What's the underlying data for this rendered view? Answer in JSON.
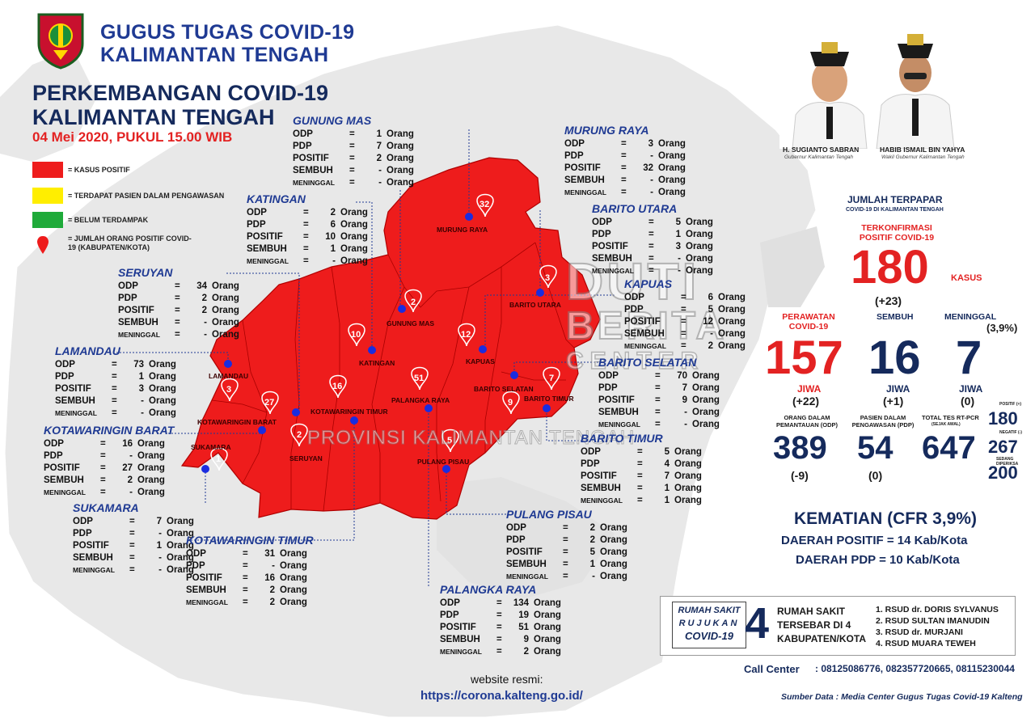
{
  "header": {
    "org_line1": "GUGUS TUGAS COVID-19",
    "org_line2": "KALIMANTAN TENGAH",
    "title_line1": "PERKEMBANGAN COVID-19",
    "title_line2": "KALIMANTAN TENGAH",
    "date": "04 Mei 2020, PUKUL 15.00 WIB"
  },
  "legend": [
    {
      "label": "= KASUS POSITIF",
      "color": "#ee1c1c"
    },
    {
      "label": "= TERDAPAT PASIEN DALAM PENGAWASAN",
      "color": "#ffee00"
    },
    {
      "label": "= BELUM TERDAMPAK",
      "color": "#1faa3a"
    },
    {
      "label": "= JUMLAH ORANG POSITIF COVID-19 (KABUPATEN/KOTA)",
      "color": "#ee1c1c"
    }
  ],
  "row_labels": {
    "odp": "ODP",
    "pdp": "PDP",
    "positif": "POSITIF",
    "sembuh": "SEMBUH",
    "meninggal": "MENINGGAL",
    "eq": "=",
    "unit": "Orang"
  },
  "regions": [
    {
      "name": "GUNUNG MAS",
      "odp": "1",
      "pdp": "7",
      "positif": "2",
      "sembuh": "-",
      "meninggal": "-"
    },
    {
      "name": "MURUNG RAYA",
      "odp": "3",
      "pdp": "-",
      "positif": "32",
      "sembuh": "-",
      "meninggal": "-"
    },
    {
      "name": "KATINGAN",
      "odp": "2",
      "pdp": "6",
      "positif": "10",
      "sembuh": "1",
      "meninggal": "-"
    },
    {
      "name": "BARITO UTARA",
      "odp": "5",
      "pdp": "1",
      "positif": "3",
      "sembuh": "-",
      "meninggal": "-"
    },
    {
      "name": "SERUYAN",
      "odp": "34",
      "pdp": "2",
      "positif": "2",
      "sembuh": "-",
      "meninggal": "-"
    },
    {
      "name": "KAPUAS",
      "odp": "6",
      "pdp": "5",
      "positif": "12",
      "sembuh": "-",
      "meninggal": "2"
    },
    {
      "name": "LAMANDAU",
      "odp": "73",
      "pdp": "1",
      "positif": "3",
      "sembuh": "-",
      "meninggal": "-"
    },
    {
      "name": "BARITO SELATAN",
      "odp": "70",
      "pdp": "7",
      "positif": "9",
      "sembuh": "-",
      "meninggal": "-"
    },
    {
      "name": "KOTAWARINGIN BARAT",
      "odp": "16",
      "pdp": "-",
      "positif": "27",
      "sembuh": "2",
      "meninggal": "-"
    },
    {
      "name": "BARITO TIMUR",
      "odp": "5",
      "pdp": "4",
      "positif": "7",
      "sembuh": "1",
      "meninggal": "1"
    },
    {
      "name": "SUKAMARA",
      "odp": "7",
      "pdp": "-",
      "positif": "1",
      "sembuh": "-",
      "meninggal": "-"
    },
    {
      "name": "PULANG PISAU",
      "odp": "2",
      "pdp": "2",
      "positif": "5",
      "sembuh": "1",
      "meninggal": "-"
    },
    {
      "name": "KOTAWARINGIN TIMUR",
      "odp": "31",
      "pdp": "-",
      "positif": "16",
      "sembuh": "2",
      "meninggal": "2"
    },
    {
      "name": "PALANGKA RAYA",
      "odp": "134",
      "pdp": "19",
      "positif": "51",
      "sembuh": "9",
      "meninggal": "2"
    }
  ],
  "map_labels": [
    {
      "name": "MURUNG RAYA",
      "count": "32"
    },
    {
      "name": "BARITO UTARA",
      "count": "3"
    },
    {
      "name": "GUNUNG MAS",
      "count": "2"
    },
    {
      "name": "KATINGAN",
      "count": "10"
    },
    {
      "name": "KAPUAS",
      "count": "12"
    },
    {
      "name": "BARITO SELATAN",
      "count": "9"
    },
    {
      "name": "BARITO TIMUR",
      "count": "7"
    },
    {
      "name": "LAMANDAU",
      "count": "3"
    },
    {
      "name": "KOTAWARINGIN BARAT",
      "count": "27"
    },
    {
      "name": "KOTAWARINGIN TIMUR",
      "count": "16"
    },
    {
      "name": "PALANGKA RAYA",
      "count": "51"
    },
    {
      "name": "SUKAMARA",
      "count": "1"
    },
    {
      "name": "SERUYAN",
      "count": "2"
    },
    {
      "name": "PULANG PISAU",
      "count": "5"
    }
  ],
  "watermark": {
    "line1": "DUTI",
    "line2": "BERITA",
    "line3": "CENTER",
    "sub": "PROVINSI KALIMANTAN TENGAH"
  },
  "officials": [
    {
      "name": "H. SUGIANTO SABRAN",
      "title": "Gubernur Kalimantan Tengah"
    },
    {
      "name": "HABIB ISMAIL BIN YAHYA",
      "title": "Wakil Gubernur Kalimantan Tengah"
    }
  ],
  "stats": {
    "heading": "JUMLAH TERPAPAR",
    "subheading": "COVID-19 DI KALIMANTAN TENGAH",
    "confirmed_label": "TERKONFIRMASI POSITIF COVID-19",
    "confirmed": "180",
    "confirmed_unit": "KASUS",
    "confirmed_delta": "(+23)",
    "treated_label": "PERAWATAN COVID-19",
    "treated": "157",
    "treated_unit": "JIWA",
    "treated_delta": "(+22)",
    "recovered_label": "SEMBUH",
    "recovered": "16",
    "recovered_unit": "JIWA",
    "recovered_delta": "(+1)",
    "deaths_label": "MENINGGAL",
    "deaths_pct": "(3,9%)",
    "deaths": "7",
    "deaths_unit": "JIWA",
    "deaths_delta": "(0)",
    "odp_label": "ORANG DALAM PEMANTAUAN (ODP)",
    "odp": "389",
    "odp_delta": "(-9)",
    "pdp_label": "PASIEN DALAM PENGAWASAN (PDP)",
    "pdp": "54",
    "pdp_delta": "(0)",
    "tests_label": "TOTAL TES RT-PCR",
    "tests_sub": "(SEJAK AWAL)",
    "tests": "647",
    "tests_pos_label": "POSITIF (+)",
    "tests_pos": "180",
    "tests_neg_label": "NEGATIF (-)",
    "tests_neg": "267",
    "tests_proc_label": "SEDANG DIPERIKSA",
    "tests_proc": "200"
  },
  "summary": {
    "cfr": "KEMATIAN (CFR 3,9%)",
    "positive_areas": "DAERAH POSITIF = 14 Kab/Kota",
    "pdp_areas": "DAERAH PDP = 10 Kab/Kota"
  },
  "hospital": {
    "label1": "RUMAH SAKIT",
    "label2": "RUJUKAN",
    "label3": "COVID-19",
    "count": "4",
    "desc1": "RUMAH SAKIT",
    "desc2": "TERSEBAR DI 4",
    "desc3": "KABUPATEN/KOTA",
    "list": [
      "1. RSUD dr. DORIS SYLVANUS",
      "2. RSUD SULTAN IMANUDIN",
      "3. RSUD dr. MURJANI",
      "4. RSUD MUARA TEWEH"
    ]
  },
  "footer": {
    "call_center_label": "Call Center",
    "call_center": ": 08125086776, 082357720665, 08115230044",
    "website_label": "website resmi:",
    "website": "https://corona.kalteng.go.id/",
    "source": "Sumber Data : Media Center Gugus Tugas Covid-19 Kalteng"
  },
  "colors": {
    "red": "#ee1c1c",
    "navy": "#152a5c",
    "blue": "#1f3a93",
    "grey_land": "#e6e6e6"
  }
}
